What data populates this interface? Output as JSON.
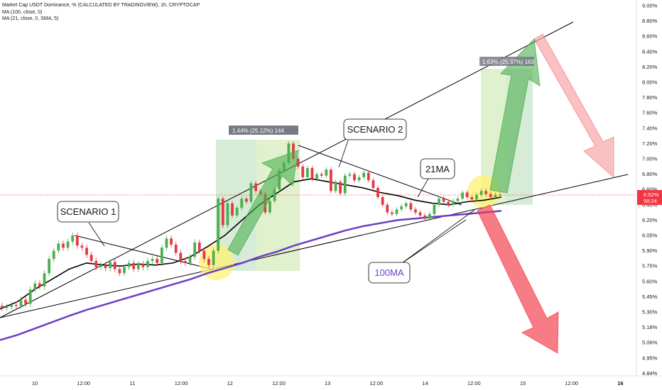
{
  "legend": {
    "line1": "Market Cap USDT Dominance, % (CALCULATED BY TRADINGVIEW), 1h, CRYPTOCAP",
    "line2": "MA (100, close, 0)",
    "line3": "MA (21, close, 0, SMA, 5)"
  },
  "price_tag": {
    "value": "6.52%",
    "countdown": "58:24"
  },
  "annotations": {
    "scenario1": "SCENARIO 1",
    "scenario2": "SCENARIO 2",
    "ma21": "21MA",
    "ma100": "100MA",
    "measure1": "1.44% (25.12%) 144",
    "measure2": "1.63% (25.37%) 163"
  },
  "colors": {
    "up": "#26a69a",
    "candle_up": "#4caf50",
    "candle_down": "#e53945",
    "ma100": "#6c3fc4",
    "ma21": "#000000",
    "price_line": "#f23645",
    "measure_fill": "#c8e6c9",
    "highlight": "#fff176",
    "arrow_green": "#4caf50",
    "arrow_red": "#f23645"
  },
  "chart_data": {
    "type": "candlestick",
    "title": "Market Cap USDT Dominance, % (CALCULATED BY TRADINGVIEW), 1h, CRYPTOCAP",
    "y_ticks": [
      "9.00%",
      "8.80%",
      "8.60%",
      "8.40%",
      "8.20%",
      "8.00%",
      "7.80%",
      "7.60%",
      "7.40%",
      "7.20%",
      "7.00%",
      "6.80%",
      "6.60%",
      "6.40%",
      "6.20%",
      "6.05%",
      "5.90%",
      "5.75%",
      "5.60%",
      "5.45%",
      "5.30%",
      "5.18%",
      "5.06%",
      "4.95%",
      "4.84%"
    ],
    "x_ticks": [
      "10",
      "12:00",
      "11",
      "12:00",
      "12",
      "12:00",
      "13",
      "12:00",
      "14",
      "12:00",
      "15",
      "12:00",
      "16"
    ],
    "last_value": 6.52,
    "candles": [
      {
        "o": 5.36,
        "c": 5.34
      },
      {
        "o": 5.34,
        "c": 5.35
      },
      {
        "o": 5.35,
        "c": 5.37
      },
      {
        "o": 5.37,
        "c": 5.36
      },
      {
        "o": 5.36,
        "c": 5.42
      },
      {
        "o": 5.42,
        "c": 5.38
      },
      {
        "o": 5.38,
        "c": 5.52
      },
      {
        "o": 5.52,
        "c": 5.58
      },
      {
        "o": 5.58,
        "c": 5.55
      },
      {
        "o": 5.55,
        "c": 5.68
      },
      {
        "o": 5.68,
        "c": 5.82
      },
      {
        "o": 5.82,
        "c": 5.9
      },
      {
        "o": 5.9,
        "c": 5.97
      },
      {
        "o": 5.97,
        "c": 5.93
      },
      {
        "o": 5.93,
        "c": 5.99
      },
      {
        "o": 5.99,
        "c": 6.05
      },
      {
        "o": 6.05,
        "c": 5.95
      },
      {
        "o": 5.95,
        "c": 5.93
      },
      {
        "o": 5.93,
        "c": 5.86
      },
      {
        "o": 5.86,
        "c": 5.8
      },
      {
        "o": 5.8,
        "c": 5.74
      },
      {
        "o": 5.74,
        "c": 5.76
      },
      {
        "o": 5.76,
        "c": 5.73
      },
      {
        "o": 5.73,
        "c": 5.79
      },
      {
        "o": 5.79,
        "c": 5.72
      },
      {
        "o": 5.72,
        "c": 5.68
      },
      {
        "o": 5.68,
        "c": 5.74
      },
      {
        "o": 5.74,
        "c": 5.78
      },
      {
        "o": 5.78,
        "c": 5.72
      },
      {
        "o": 5.72,
        "c": 5.77
      },
      {
        "o": 5.77,
        "c": 5.74
      },
      {
        "o": 5.74,
        "c": 5.8
      },
      {
        "o": 5.8,
        "c": 5.82
      },
      {
        "o": 5.82,
        "c": 5.78
      },
      {
        "o": 5.78,
        "c": 5.93
      },
      {
        "o": 5.93,
        "c": 6.02
      },
      {
        "o": 6.02,
        "c": 5.96
      },
      {
        "o": 5.96,
        "c": 5.88
      },
      {
        "o": 5.88,
        "c": 5.8
      },
      {
        "o": 5.8,
        "c": 5.78
      },
      {
        "o": 5.78,
        "c": 5.84
      },
      {
        "o": 5.84,
        "c": 5.98
      },
      {
        "o": 5.98,
        "c": 5.9
      },
      {
        "o": 5.9,
        "c": 5.82
      },
      {
        "o": 5.82,
        "c": 5.76
      },
      {
        "o": 5.76,
        "c": 5.9
      },
      {
        "o": 5.9,
        "c": 6.48
      },
      {
        "o": 6.48,
        "c": 6.15
      },
      {
        "o": 6.15,
        "c": 6.42
      },
      {
        "o": 6.42,
        "c": 6.26
      },
      {
        "o": 6.26,
        "c": 6.36
      },
      {
        "o": 6.36,
        "c": 6.48
      },
      {
        "o": 6.48,
        "c": 6.44
      },
      {
        "o": 6.44,
        "c": 6.68
      },
      {
        "o": 6.68,
        "c": 6.58
      },
      {
        "o": 6.58,
        "c": 6.54
      },
      {
        "o": 6.54,
        "c": 6.3
      },
      {
        "o": 6.3,
        "c": 6.45
      },
      {
        "o": 6.45,
        "c": 6.6
      },
      {
        "o": 6.6,
        "c": 6.85
      },
      {
        "o": 6.85,
        "c": 6.95
      },
      {
        "o": 6.95,
        "c": 7.2
      },
      {
        "o": 7.2,
        "c": 7.0
      },
      {
        "o": 7.0,
        "c": 6.9
      },
      {
        "o": 6.9,
        "c": 6.76
      },
      {
        "o": 6.76,
        "c": 6.88
      },
      {
        "o": 6.88,
        "c": 6.74
      },
      {
        "o": 6.74,
        "c": 6.8
      },
      {
        "o": 6.8,
        "c": 6.78
      },
      {
        "o": 6.78,
        "c": 6.86
      },
      {
        "o": 6.86,
        "c": 6.58
      },
      {
        "o": 6.58,
        "c": 6.7
      },
      {
        "o": 6.7,
        "c": 6.55
      },
      {
        "o": 6.55,
        "c": 6.78
      },
      {
        "o": 6.78,
        "c": 6.8
      },
      {
        "o": 6.8,
        "c": 6.72
      },
      {
        "o": 6.72,
        "c": 6.76
      },
      {
        "o": 6.76,
        "c": 6.82
      },
      {
        "o": 6.82,
        "c": 6.72
      },
      {
        "o": 6.72,
        "c": 6.62
      },
      {
        "o": 6.62,
        "c": 6.5
      },
      {
        "o": 6.5,
        "c": 6.4
      },
      {
        "o": 6.4,
        "c": 6.3
      },
      {
        "o": 6.3,
        "c": 6.28
      },
      {
        "o": 6.28,
        "c": 6.34
      },
      {
        "o": 6.34,
        "c": 6.38
      },
      {
        "o": 6.38,
        "c": 6.42
      },
      {
        "o": 6.42,
        "c": 6.34
      },
      {
        "o": 6.34,
        "c": 6.3
      },
      {
        "o": 6.3,
        "c": 6.26
      },
      {
        "o": 6.26,
        "c": 6.22
      },
      {
        "o": 6.22,
        "c": 6.28
      },
      {
        "o": 6.28,
        "c": 6.4
      },
      {
        "o": 6.4,
        "c": 6.48
      },
      {
        "o": 6.48,
        "c": 6.44
      },
      {
        "o": 6.44,
        "c": 6.4
      },
      {
        "o": 6.4,
        "c": 6.45
      },
      {
        "o": 6.45,
        "c": 6.48
      },
      {
        "o": 6.48,
        "c": 6.56
      },
      {
        "o": 6.56,
        "c": 6.5
      },
      {
        "o": 6.5,
        "c": 6.47
      },
      {
        "o": 6.47,
        "c": 6.53
      },
      {
        "o": 6.53,
        "c": 6.58
      },
      {
        "o": 6.58,
        "c": 6.54
      },
      {
        "o": 6.54,
        "c": 6.5
      },
      {
        "o": 6.5,
        "c": 6.53
      },
      {
        "o": 6.53,
        "c": 6.52
      }
    ],
    "ma21": [
      5.33,
      5.4,
      5.52,
      5.62,
      5.72,
      5.78,
      5.76,
      5.75,
      5.77,
      5.76,
      5.78,
      5.84,
      5.94,
      6.05,
      6.2,
      6.4,
      6.55,
      6.7,
      6.74,
      6.7,
      6.66,
      6.62,
      6.56,
      6.52,
      6.46,
      6.42,
      6.4,
      6.44,
      6.46,
      6.5
    ],
    "ma100": [
      5.08,
      5.12,
      5.17,
      5.22,
      5.27,
      5.32,
      5.37,
      5.42,
      5.47,
      5.52,
      5.57,
      5.62,
      5.68,
      5.73,
      5.78,
      5.84,
      5.89,
      5.95,
      6.0,
      6.05,
      6.1,
      6.14,
      6.17,
      6.2,
      6.22,
      6.24,
      6.26,
      6.28,
      6.3,
      6.32
    ]
  }
}
